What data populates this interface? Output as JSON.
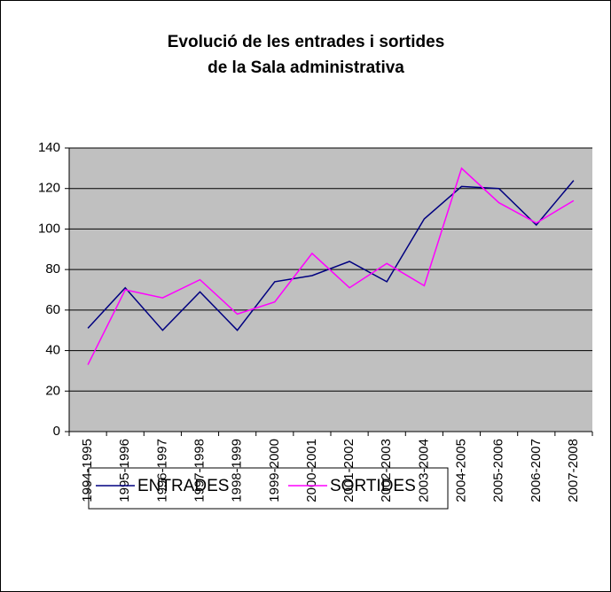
{
  "chart_data": {
    "type": "line",
    "title": [
      "Evolució de les entrades i sortides",
      "de la Sala administrativa"
    ],
    "categories": [
      "1994-1995",
      "1995-1996",
      "1996-1997",
      "1997-1998",
      "1998-1999",
      "1999-2000",
      "2000-2001",
      "2001-2002",
      "2002-2003",
      "2003-2004",
      "2004-2005",
      "2005-2006",
      "2006-2007",
      "2007-2008"
    ],
    "series": [
      {
        "name": "ENTRADES",
        "color": "#000080",
        "values": [
          51,
          71,
          50,
          69,
          50,
          74,
          77,
          84,
          74,
          105,
          121,
          120,
          102,
          124
        ]
      },
      {
        "name": "SORTIDES",
        "color": "#ff00ff",
        "values": [
          33,
          70,
          66,
          75,
          58,
          64,
          88,
          71,
          83,
          72,
          130,
          113,
          103,
          114
        ]
      }
    ],
    "ylim": [
      0,
      140
    ],
    "yticks": [
      0,
      20,
      40,
      60,
      80,
      100,
      120,
      140
    ],
    "grid": true,
    "legend": "bottom"
  }
}
